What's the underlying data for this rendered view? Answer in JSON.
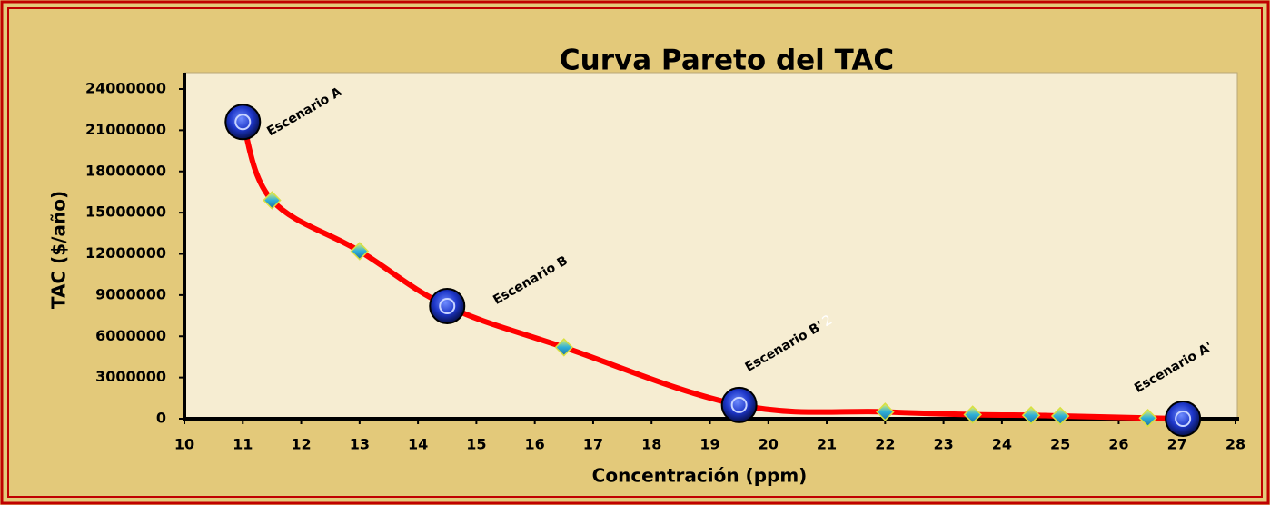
{
  "chart_data": {
    "type": "line",
    "title": "Curva Pareto del TAC",
    "x_label": "Concentración (ppm)",
    "y_label": "TAC ($/año)",
    "x": [
      11,
      11.5,
      13,
      14.5,
      16.5,
      19.5,
      22,
      23.5,
      24.5,
      25,
      26.5,
      27.1
    ],
    "values": [
      21600000,
      15900000,
      12200000,
      8200000,
      5200000,
      1000000,
      500000,
      300000,
      250000,
      200000,
      50000,
      0
    ],
    "point_labels": [
      "Escenario A",
      null,
      null,
      "Escenario B",
      null,
      "Escenario B'",
      null,
      null,
      null,
      null,
      null,
      "Escenario A'"
    ],
    "annotations": [
      "2"
    ],
    "color": "#ff0000",
    "xlim": [
      10,
      28
    ],
    "xticks": [
      10,
      11,
      12,
      13,
      14,
      15,
      16,
      17,
      18,
      19,
      20,
      21,
      22,
      23,
      24,
      25,
      26,
      27,
      28
    ],
    "ylim": [
      0,
      24000000
    ],
    "yticks": [
      0,
      3000000,
      6000000,
      9000000,
      12000000,
      15000000,
      18000000,
      21000000,
      24000000
    ]
  }
}
